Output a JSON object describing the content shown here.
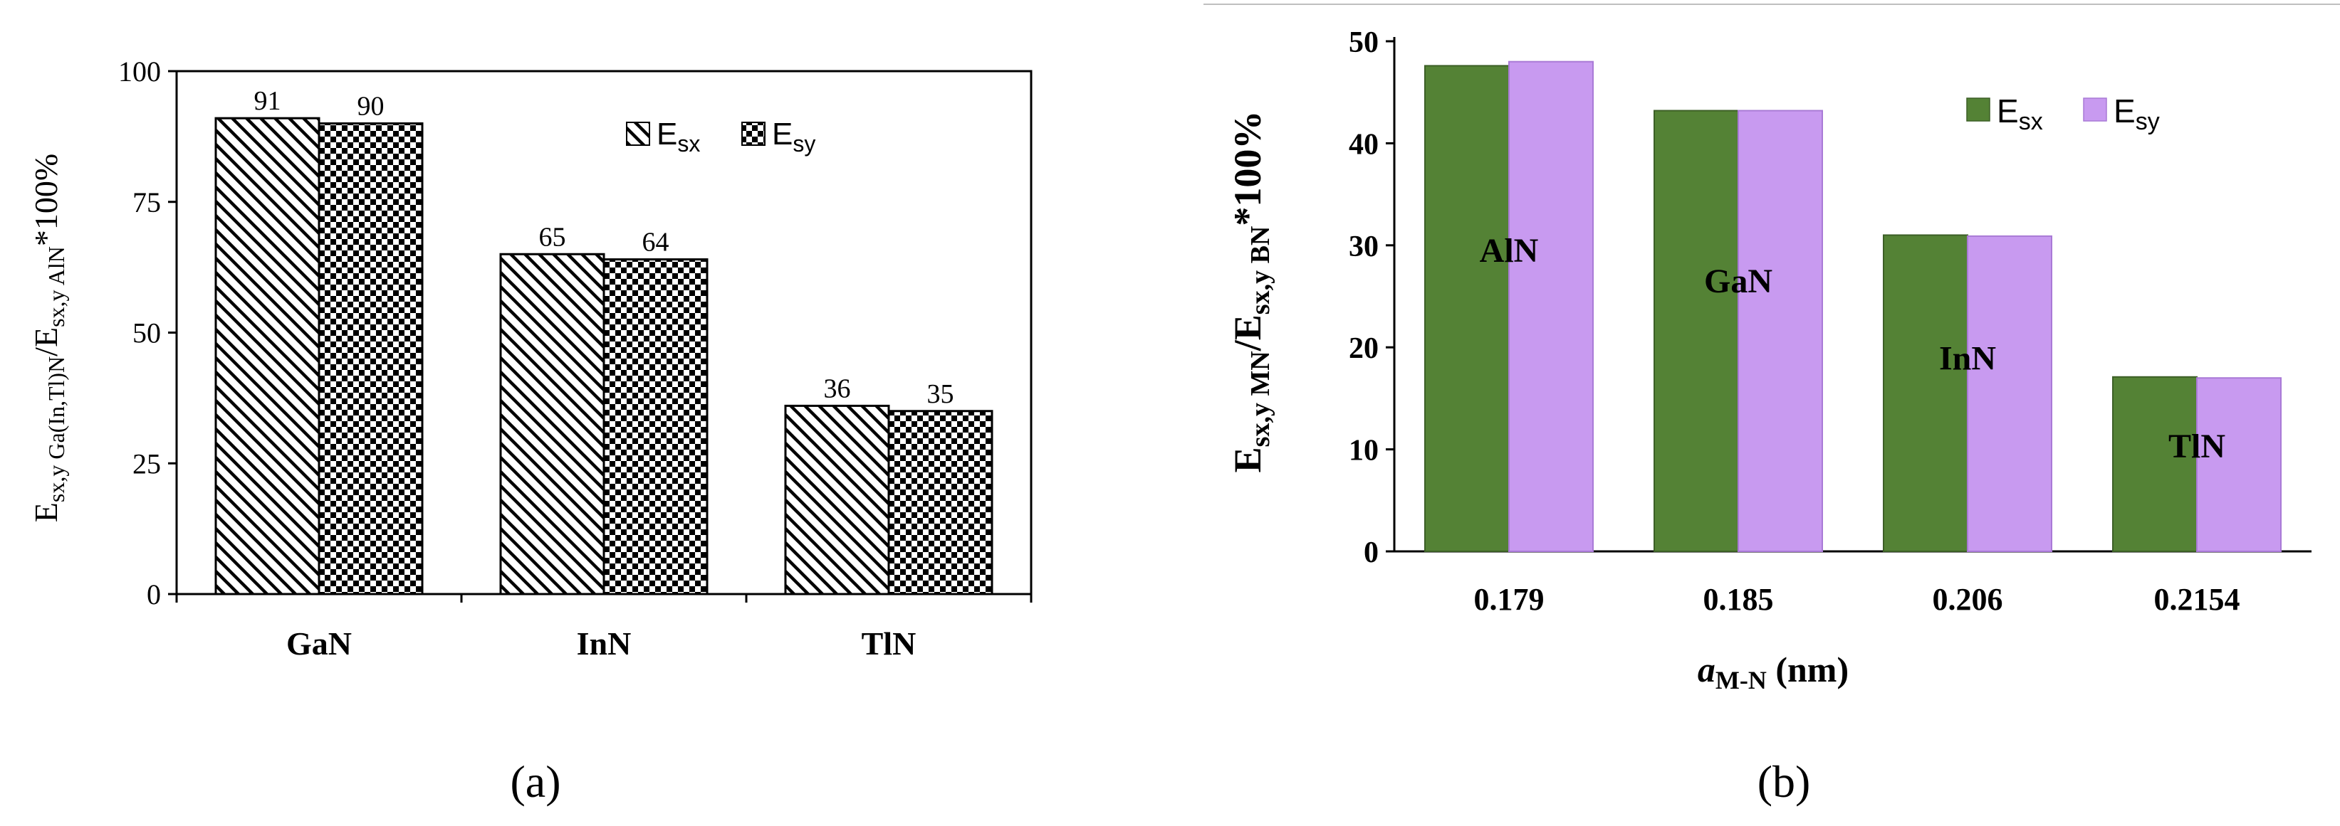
{
  "panels": [
    {
      "panel_label": "(a)",
      "y_axis_label": {
        "main": "E",
        "sub1": "sx,y Ga(In,Tl)N",
        "mid": "/E",
        "sub2": "sx,y AlN",
        "tail": "*100%"
      },
      "chart_data": {
        "type": "bar",
        "categories": [
          "GaN",
          "InN",
          "TlN"
        ],
        "series": [
          {
            "name": "E_sx",
            "legend_main": "E",
            "legend_sub": "sx",
            "values": [
              91,
              65,
              36
            ],
            "data_labels": [
              "91",
              "65",
              "36"
            ]
          },
          {
            "name": "E_sy",
            "legend_main": "E",
            "legend_sub": "sy",
            "values": [
              90,
              64,
              35
            ],
            "data_labels": [
              "90",
              "64",
              "35"
            ]
          }
        ],
        "ylim": [
          0,
          100
        ],
        "yticks": [
          "0",
          "25",
          "50",
          "75",
          "100"
        ],
        "grid": false,
        "legend_position": "top-right",
        "patterns": [
          "diagonal-hatch",
          "checkerboard"
        ],
        "colors": [
          "#000000",
          "#ffffff"
        ]
      }
    },
    {
      "panel_label": "(b)",
      "y_axis_label": {
        "main": "E",
        "sub1": "sx,y MN",
        "mid": "/E",
        "sub2": "sx,y BN",
        "tail": "*100%"
      },
      "x_axis_label": {
        "main": "a",
        "sub": "M-N",
        "tail": " (nm)"
      },
      "chart_data": {
        "type": "bar",
        "categories": [
          "0.179",
          "0.185",
          "0.206",
          "0.2154"
        ],
        "annotations": [
          "AlN",
          "GaN",
          "InN",
          "TlN"
        ],
        "series": [
          {
            "name": "E_sx",
            "legend_main": "E",
            "legend_sub": "sx",
            "values": [
              47.6,
              43.2,
              31.0,
              17.1
            ],
            "color": "#548235"
          },
          {
            "name": "E_sy",
            "legend_main": "E",
            "legend_sub": "sy",
            "values": [
              48.0,
              43.2,
              30.9,
              17.0
            ],
            "color": "#c89af0"
          }
        ],
        "ylim": [
          0,
          50
        ],
        "yticks": [
          "0",
          "10",
          "20",
          "30",
          "40",
          "50"
        ],
        "grid": false,
        "legend_position": "top-right"
      }
    }
  ]
}
